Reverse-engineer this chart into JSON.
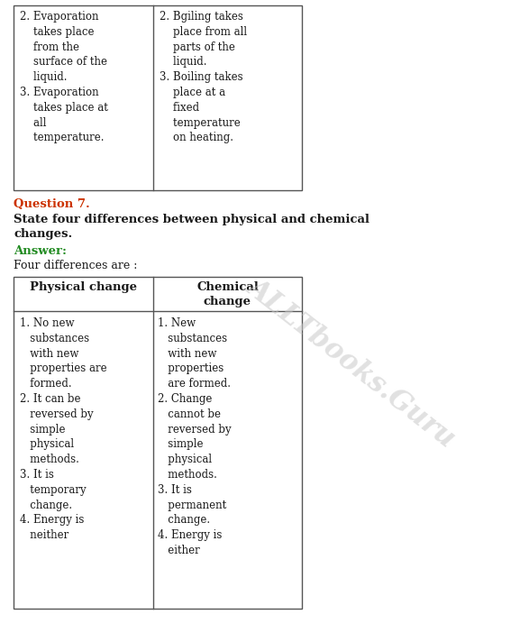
{
  "background_color": "#ffffff",
  "watermark_text": "ALLTbooks.Guru",
  "watermark_color": "#c8c8c8",
  "question_color": "#cc3300",
  "answer_color": "#228B22",
  "text_color": "#1a1a1a",
  "top_table": {
    "col1_text": "2. Evaporation\n    takes place\n    from the\n    surface of the\n    liquid.\n3. Evaporation\n    takes place at\n    all\n    temperature.",
    "col2_text": "2. Bgiling takes\n    place from all\n    parts of the\n    liquid.\n3. Boiling takes\n    place at a\n    fixed\n    temperature\n    on heating."
  },
  "question_text": "Question 7.",
  "question_body": "State four differences between physical and chemical\nchanges.",
  "answer_label": "Answer:",
  "answer_intro": "Four differences are :",
  "bottom_table": {
    "col1_header": "Physical change",
    "col2_header": "Chemical\nchange",
    "col1_body": "1. No new\n   substances\n   with new\n   properties are\n   formed.\n2. It can be\n   reversed by\n   simple\n   physical\n   methods.\n3. It is\n   temporary\n   change.\n4. Energy is\n   neither",
    "col2_body": "1. New\n   substances\n   with new\n   properties\n   are formed.\n2. Change\n   cannot be\n   reversed by\n   simple\n   physical\n   methods.\n3. It is\n   permanent\n   change.\n4. Energy is\n   either"
  },
  "font_size_table": 8.5,
  "font_size_header": 9.5,
  "font_size_question": 9.5,
  "font_size_answer": 9.0,
  "font_size_watermark": 22
}
